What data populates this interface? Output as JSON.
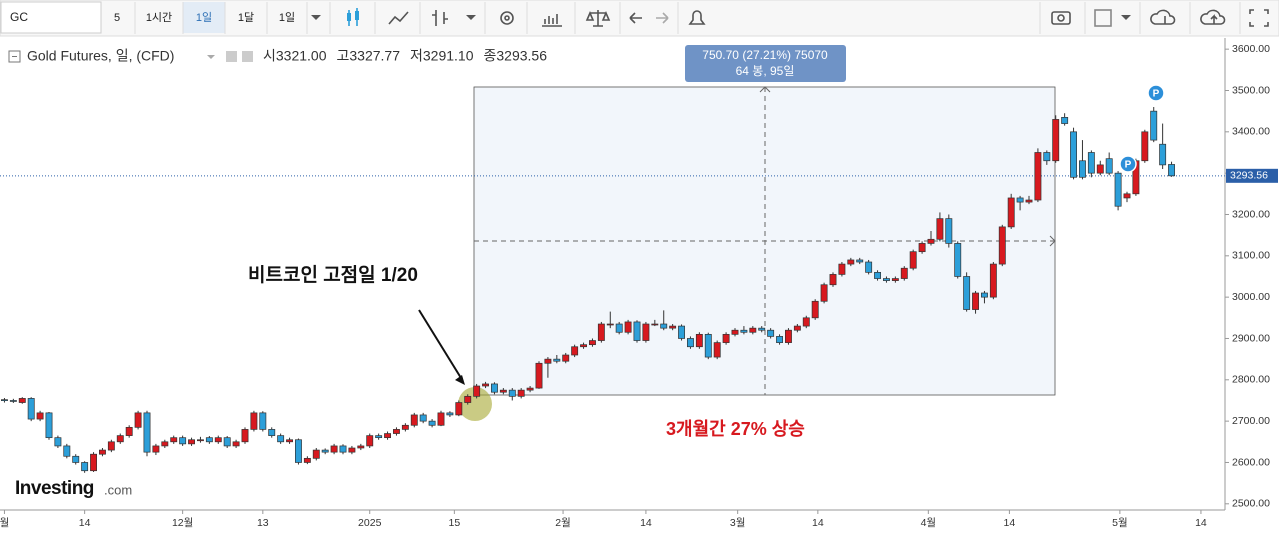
{
  "toolbar": {
    "symbol": "GC",
    "items": [
      "5",
      "1시간",
      "1일",
      "1달",
      "1일"
    ]
  },
  "logo": {
    "brand": "Investing",
    "suffix": ".com"
  },
  "chart_data": {
    "type": "candlestick",
    "title": "Gold Futures, 일, (CFD)",
    "header_stats": [
      "시3321.00",
      "고3327.77",
      "저3291.10",
      "종3293.56"
    ],
    "up_color": "#d7191f",
    "down_color": "#2c9fd9",
    "ohlc": [
      [
        2752,
        2756,
        2745,
        2750
      ],
      [
        2750,
        2754,
        2744,
        2748
      ],
      [
        2745,
        2758,
        2742,
        2755
      ],
      [
        2755,
        2758,
        2700,
        2705
      ],
      [
        2705,
        2725,
        2700,
        2720
      ],
      [
        2720,
        2722,
        2655,
        2660
      ],
      [
        2660,
        2665,
        2635,
        2640
      ],
      [
        2640,
        2645,
        2610,
        2615
      ],
      [
        2615,
        2620,
        2595,
        2600
      ],
      [
        2600,
        2603,
        2575,
        2580
      ],
      [
        2580,
        2625,
        2577,
        2620
      ],
      [
        2620,
        2635,
        2615,
        2630
      ],
      [
        2630,
        2655,
        2625,
        2650
      ],
      [
        2650,
        2670,
        2645,
        2665
      ],
      [
        2665,
        2690,
        2660,
        2685
      ],
      [
        2685,
        2725,
        2680,
        2720
      ],
      [
        2720,
        2725,
        2615,
        2625
      ],
      [
        2625,
        2645,
        2618,
        2640
      ],
      [
        2640,
        2655,
        2635,
        2650
      ],
      [
        2650,
        2665,
        2645,
        2660
      ],
      [
        2660,
        2665,
        2640,
        2645
      ],
      [
        2645,
        2660,
        2640,
        2655
      ],
      [
        2655,
        2662,
        2648,
        2655
      ],
      [
        2660,
        2664,
        2645,
        2650
      ],
      [
        2650,
        2665,
        2645,
        2660
      ],
      [
        2660,
        2664,
        2635,
        2640
      ],
      [
        2640,
        2655,
        2635,
        2650
      ],
      [
        2650,
        2685,
        2645,
        2680
      ],
      [
        2680,
        2725,
        2675,
        2720
      ],
      [
        2720,
        2724,
        2675,
        2680
      ],
      [
        2680,
        2685,
        2660,
        2665
      ],
      [
        2665,
        2670,
        2645,
        2650
      ],
      [
        2650,
        2660,
        2645,
        2655
      ],
      [
        2655,
        2658,
        2595,
        2600
      ],
      [
        2600,
        2615,
        2596,
        2610
      ],
      [
        2610,
        2635,
        2605,
        2630
      ],
      [
        2630,
        2634,
        2620,
        2625
      ],
      [
        2625,
        2645,
        2620,
        2640
      ],
      [
        2640,
        2644,
        2620,
        2625
      ],
      [
        2625,
        2640,
        2620,
        2635
      ],
      [
        2635,
        2645,
        2630,
        2640
      ],
      [
        2640,
        2670,
        2635,
        2665
      ],
      [
        2665,
        2670,
        2655,
        2660
      ],
      [
        2660,
        2675,
        2655,
        2670
      ],
      [
        2670,
        2685,
        2665,
        2680
      ],
      [
        2680,
        2695,
        2675,
        2690
      ],
      [
        2690,
        2720,
        2685,
        2715
      ],
      [
        2715,
        2720,
        2695,
        2700
      ],
      [
        2700,
        2705,
        2685,
        2690
      ],
      [
        2690,
        2725,
        2688,
        2720
      ],
      [
        2720,
        2724,
        2710,
        2715
      ],
      [
        2715,
        2750,
        2712,
        2745
      ],
      [
        2745,
        2765,
        2740,
        2760
      ],
      [
        2760,
        2790,
        2755,
        2785
      ],
      [
        2785,
        2795,
        2780,
        2790
      ],
      [
        2790,
        2794,
        2765,
        2770
      ],
      [
        2770,
        2780,
        2765,
        2775
      ],
      [
        2775,
        2780,
        2750,
        2760
      ],
      [
        2760,
        2780,
        2755,
        2775
      ],
      [
        2775,
        2785,
        2770,
        2780
      ],
      [
        2780,
        2845,
        2778,
        2840
      ],
      [
        2840,
        2855,
        2805,
        2850
      ],
      [
        2850,
        2860,
        2840,
        2845
      ],
      [
        2845,
        2865,
        2840,
        2860
      ],
      [
        2860,
        2885,
        2855,
        2880
      ],
      [
        2880,
        2890,
        2875,
        2885
      ],
      [
        2885,
        2900,
        2880,
        2895
      ],
      [
        2895,
        2940,
        2890,
        2935
      ],
      [
        2935,
        2965,
        2925,
        2935
      ],
      [
        2935,
        2940,
        2910,
        2915
      ],
      [
        2915,
        2945,
        2910,
        2940
      ],
      [
        2940,
        2944,
        2890,
        2895
      ],
      [
        2895,
        2940,
        2890,
        2935
      ],
      [
        2935,
        2945,
        2930,
        2935
      ],
      [
        2935,
        2968,
        2920,
        2925
      ],
      [
        2925,
        2935,
        2920,
        2930
      ],
      [
        2930,
        2934,
        2895,
        2900
      ],
      [
        2900,
        2905,
        2875,
        2880
      ],
      [
        2880,
        2915,
        2875,
        2910
      ],
      [
        2910,
        2914,
        2850,
        2855
      ],
      [
        2855,
        2895,
        2850,
        2890
      ],
      [
        2890,
        2915,
        2885,
        2910
      ],
      [
        2910,
        2925,
        2905,
        2920
      ],
      [
        2920,
        2930,
        2910,
        2915
      ],
      [
        2915,
        2930,
        2910,
        2925
      ],
      [
        2925,
        2930,
        2915,
        2920
      ],
      [
        2920,
        2925,
        2900,
        2905
      ],
      [
        2905,
        2910,
        2885,
        2890
      ],
      [
        2890,
        2925,
        2885,
        2920
      ],
      [
        2920,
        2935,
        2915,
        2930
      ],
      [
        2930,
        2955,
        2925,
        2950
      ],
      [
        2950,
        2995,
        2945,
        2990
      ],
      [
        2990,
        3035,
        2985,
        3030
      ],
      [
        3030,
        3060,
        3025,
        3055
      ],
      [
        3055,
        3085,
        3050,
        3080
      ],
      [
        3080,
        3095,
        3075,
        3090
      ],
      [
        3090,
        3095,
        3080,
        3085
      ],
      [
        3085,
        3090,
        3055,
        3060
      ],
      [
        3060,
        3065,
        3040,
        3045
      ],
      [
        3045,
        3050,
        3035,
        3040
      ],
      [
        3040,
        3050,
        3035,
        3045
      ],
      [
        3045,
        3075,
        3040,
        3070
      ],
      [
        3070,
        3115,
        3065,
        3110
      ],
      [
        3110,
        3135,
        3105,
        3130
      ],
      [
        3130,
        3160,
        3125,
        3140
      ],
      [
        3140,
        3205,
        3135,
        3190
      ],
      [
        3190,
        3200,
        3120,
        3130
      ],
      [
        3130,
        3135,
        3045,
        3050
      ],
      [
        3050,
        3060,
        2965,
        2970
      ],
      [
        2970,
        3015,
        2960,
        3010
      ],
      [
        3010,
        3015,
        2985,
        3000
      ],
      [
        3000,
        3085,
        2995,
        3080
      ],
      [
        3080,
        3175,
        3075,
        3170
      ],
      [
        3170,
        3250,
        3165,
        3240
      ],
      [
        3240,
        3245,
        3210,
        3230
      ],
      [
        3230,
        3245,
        3225,
        3235
      ],
      [
        3235,
        3360,
        3230,
        3350
      ],
      [
        3350,
        3355,
        3320,
        3330
      ],
      [
        3330,
        3440,
        3325,
        3430
      ],
      [
        3435,
        3445,
        3415,
        3420
      ],
      [
        3400,
        3410,
        3285,
        3290
      ],
      [
        3330,
        3380,
        3285,
        3290
      ],
      [
        3350,
        3355,
        3290,
        3300
      ],
      [
        3300,
        3330,
        3295,
        3320
      ],
      [
        3335,
        3350,
        3295,
        3300
      ],
      [
        3300,
        3305,
        3210,
        3220
      ],
      [
        3240,
        3255,
        3230,
        3250
      ],
      [
        3250,
        3335,
        3245,
        3330
      ],
      [
        3330,
        3405,
        3325,
        3400
      ],
      [
        3450,
        3460,
        3375,
        3380
      ],
      [
        3370,
        3420,
        3310,
        3320
      ],
      [
        3321,
        3327.77,
        3291.1,
        3293.56
      ]
    ],
    "xlim": [
      -0.5,
      137
    ],
    "xticks": [
      {
        "value": 0,
        "label": "월"
      },
      {
        "value": 9,
        "label": "14"
      },
      {
        "value": 20,
        "label": "12월"
      },
      {
        "value": 29,
        "label": "13"
      },
      {
        "value": 41,
        "label": "2025"
      },
      {
        "value": 50.5,
        "label": "15"
      },
      {
        "value": 62.7,
        "label": "2월"
      },
      {
        "value": 72,
        "label": "14"
      },
      {
        "value": 82.3,
        "label": "3월"
      },
      {
        "value": 91.3,
        "label": "14"
      },
      {
        "value": 103.7,
        "label": "4월"
      },
      {
        "value": 112.8,
        "label": "14"
      },
      {
        "value": 125.2,
        "label": "5월"
      },
      {
        "value": 134.3,
        "label": "14"
      }
    ],
    "ylim": [
      2485,
      3627
    ],
    "yticks": [
      {
        "value": 2500,
        "label": "2500.00"
      },
      {
        "value": 2600,
        "label": "2600.00"
      },
      {
        "value": 2700,
        "label": "2700.00"
      },
      {
        "value": 2800,
        "label": "2800.00"
      },
      {
        "value": 2900,
        "label": "2900.00"
      },
      {
        "value": 3000,
        "label": "3000.00"
      },
      {
        "value": 3100,
        "label": "3100.00"
      },
      {
        "value": 3200,
        "label": "3200.00"
      },
      {
        "value": 3300,
        "label": "3300.00"
      },
      {
        "value": 3400,
        "label": "3400.00"
      },
      {
        "value": 3500,
        "label": "3500.00"
      },
      {
        "value": 3600,
        "label": "3600.00"
      }
    ],
    "last_price": {
      "value": 3293.56,
      "label": "3293.56"
    },
    "measure": {
      "line1": "750.70 (27.21%) 75070",
      "line2": "64 봉, 95일"
    },
    "annotations": [
      "비트코인 고점일 1/20",
      "3개월간 27% 상승"
    ],
    "event_markers": [
      "P",
      "P"
    ]
  }
}
